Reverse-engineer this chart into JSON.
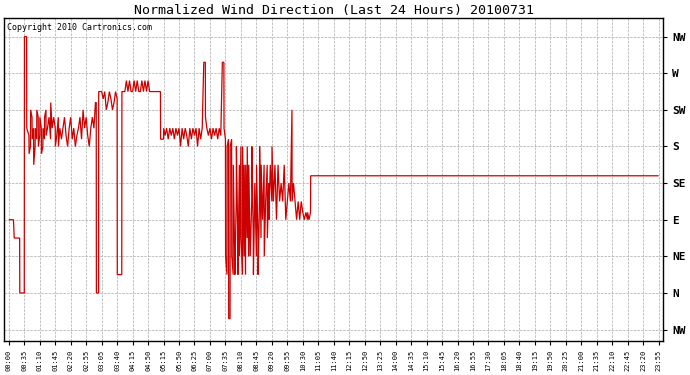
{
  "title": "Normalized Wind Direction (Last 24 Hours) 20100731",
  "copyright": "Copyright 2010 Cartronics.com",
  "line_color": "#cc0000",
  "ytick_labels": [
    "NW",
    "W",
    "SW",
    "S",
    "SE",
    "E",
    "NE",
    "N",
    "NW"
  ],
  "ytick_values": [
    8,
    7,
    6,
    5,
    4,
    3,
    2,
    1,
    0
  ],
  "ylim": [
    -0.3,
    8.5
  ],
  "xtick_labels": [
    "00:00",
    "00:35",
    "01:10",
    "01:45",
    "02:20",
    "02:55",
    "03:05",
    "03:40",
    "04:15",
    "04:50",
    "05:15",
    "05:50",
    "06:25",
    "07:00",
    "07:35",
    "08:10",
    "08:45",
    "09:20",
    "09:55",
    "10:30",
    "11:05",
    "11:40",
    "12:15",
    "12:50",
    "13:25",
    "14:00",
    "14:35",
    "15:10",
    "15:45",
    "16:20",
    "16:55",
    "17:30",
    "18:05",
    "18:40",
    "19:15",
    "19:50",
    "20:25",
    "21:00",
    "21:35",
    "22:10",
    "22:45",
    "23:20",
    "23:55"
  ],
  "figsize": [
    6.9,
    3.75
  ],
  "dpi": 100,
  "wind_data": [
    [
      0.0,
      3.0
    ],
    [
      0.3,
      3.0
    ],
    [
      0.35,
      2.5
    ],
    [
      0.7,
      2.5
    ],
    [
      0.71,
      1.0
    ],
    [
      1.0,
      1.0
    ],
    [
      1.01,
      8.0
    ],
    [
      1.15,
      8.0
    ],
    [
      1.16,
      5.5
    ],
    [
      1.3,
      5.3
    ],
    [
      1.31,
      4.8
    ],
    [
      1.4,
      5.0
    ],
    [
      1.41,
      6.0
    ],
    [
      1.5,
      5.8
    ],
    [
      1.51,
      5.2
    ],
    [
      1.6,
      5.5
    ],
    [
      1.61,
      4.5
    ],
    [
      1.7,
      5.0
    ],
    [
      1.71,
      5.5
    ],
    [
      1.8,
      5.2
    ],
    [
      1.81,
      6.0
    ],
    [
      1.9,
      5.8
    ],
    [
      1.91,
      5.0
    ],
    [
      2.0,
      5.3
    ],
    [
      2.01,
      5.8
    ],
    [
      2.1,
      5.5
    ],
    [
      2.11,
      4.8
    ],
    [
      2.2,
      5.0
    ],
    [
      2.21,
      5.5
    ],
    [
      2.3,
      5.2
    ],
    [
      2.31,
      5.8
    ],
    [
      2.4,
      6.0
    ],
    [
      2.41,
      5.3
    ],
    [
      2.5,
      5.5
    ],
    [
      2.6,
      5.8
    ],
    [
      2.7,
      5.2
    ],
    [
      2.71,
      6.2
    ],
    [
      2.8,
      5.5
    ],
    [
      2.9,
      5.8
    ],
    [
      3.0,
      5.5
    ],
    [
      3.01,
      5.0
    ],
    [
      3.1,
      5.3
    ],
    [
      3.2,
      5.8
    ],
    [
      3.21,
      5.0
    ],
    [
      3.3,
      5.5
    ],
    [
      3.4,
      5.2
    ],
    [
      3.5,
      5.5
    ],
    [
      3.6,
      5.8
    ],
    [
      3.7,
      5.3
    ],
    [
      3.8,
      5.0
    ],
    [
      3.9,
      5.5
    ],
    [
      4.0,
      5.8
    ],
    [
      4.1,
      5.2
    ],
    [
      4.2,
      5.5
    ],
    [
      4.3,
      5.0
    ],
    [
      4.4,
      5.3
    ],
    [
      4.5,
      5.5
    ],
    [
      4.6,
      5.8
    ],
    [
      4.7,
      5.2
    ],
    [
      4.8,
      6.0
    ],
    [
      4.9,
      5.5
    ],
    [
      5.0,
      5.8
    ],
    [
      5.1,
      5.3
    ],
    [
      5.2,
      5.0
    ],
    [
      5.3,
      5.5
    ],
    [
      5.4,
      5.8
    ],
    [
      5.5,
      5.5
    ],
    [
      5.6,
      6.2
    ],
    [
      5.65,
      6.2
    ],
    [
      5.66,
      1.0
    ],
    [
      5.8,
      1.0
    ],
    [
      5.81,
      6.5
    ],
    [
      6.0,
      6.5
    ],
    [
      6.1,
      6.3
    ],
    [
      6.2,
      6.5
    ],
    [
      6.3,
      6.0
    ],
    [
      6.4,
      6.2
    ],
    [
      6.5,
      6.5
    ],
    [
      6.6,
      6.3
    ],
    [
      6.7,
      6.0
    ],
    [
      6.8,
      6.2
    ],
    [
      6.9,
      6.5
    ],
    [
      7.0,
      6.3
    ],
    [
      7.01,
      1.5
    ],
    [
      7.3,
      1.5
    ],
    [
      7.31,
      6.5
    ],
    [
      7.5,
      6.5
    ],
    [
      7.6,
      6.8
    ],
    [
      7.7,
      6.5
    ],
    [
      7.8,
      6.8
    ],
    [
      7.9,
      6.5
    ],
    [
      8.0,
      6.5
    ],
    [
      8.1,
      6.8
    ],
    [
      8.2,
      6.5
    ],
    [
      8.3,
      6.8
    ],
    [
      8.4,
      6.5
    ],
    [
      8.5,
      6.5
    ],
    [
      8.6,
      6.8
    ],
    [
      8.7,
      6.5
    ],
    [
      8.8,
      6.8
    ],
    [
      8.9,
      6.5
    ],
    [
      9.0,
      6.8
    ],
    [
      9.1,
      6.5
    ],
    [
      9.2,
      6.5
    ],
    [
      9.8,
      6.5
    ],
    [
      9.81,
      5.2
    ],
    [
      10.0,
      5.2
    ],
    [
      10.01,
      5.5
    ],
    [
      10.1,
      5.3
    ],
    [
      10.2,
      5.5
    ],
    [
      10.3,
      5.2
    ],
    [
      10.4,
      5.5
    ],
    [
      10.5,
      5.3
    ],
    [
      10.6,
      5.5
    ],
    [
      10.7,
      5.2
    ],
    [
      10.8,
      5.5
    ],
    [
      10.9,
      5.3
    ],
    [
      11.0,
      5.5
    ],
    [
      11.1,
      5.0
    ],
    [
      11.2,
      5.5
    ],
    [
      11.3,
      5.2
    ],
    [
      11.4,
      5.5
    ],
    [
      11.5,
      5.3
    ],
    [
      11.6,
      5.0
    ],
    [
      11.7,
      5.5
    ],
    [
      11.8,
      5.2
    ],
    [
      11.9,
      5.5
    ],
    [
      12.0,
      5.3
    ],
    [
      12.1,
      5.5
    ],
    [
      12.2,
      5.0
    ],
    [
      12.3,
      5.5
    ],
    [
      12.4,
      5.2
    ],
    [
      12.5,
      5.5
    ],
    [
      12.6,
      7.3
    ],
    [
      12.7,
      7.3
    ],
    [
      12.71,
      5.8
    ],
    [
      12.8,
      5.5
    ],
    [
      12.9,
      5.3
    ],
    [
      13.0,
      5.5
    ],
    [
      13.1,
      5.2
    ],
    [
      13.2,
      5.5
    ],
    [
      13.3,
      5.3
    ],
    [
      13.4,
      5.5
    ],
    [
      13.5,
      5.2
    ],
    [
      13.6,
      5.5
    ],
    [
      13.7,
      5.3
    ],
    [
      13.8,
      7.3
    ],
    [
      13.9,
      7.3
    ],
    [
      13.91,
      5.5
    ],
    [
      14.0,
      5.2
    ],
    [
      14.01,
      2.0
    ],
    [
      14.1,
      1.5
    ],
    [
      14.11,
      5.0
    ],
    [
      14.2,
      5.2
    ],
    [
      14.21,
      0.3
    ],
    [
      14.3,
      0.3
    ],
    [
      14.31,
      5.0
    ],
    [
      14.4,
      5.2
    ],
    [
      14.41,
      2.0
    ],
    [
      14.5,
      1.5
    ],
    [
      14.51,
      4.5
    ],
    [
      14.6,
      2.0
    ],
    [
      14.61,
      1.5
    ],
    [
      14.7,
      3.5
    ],
    [
      14.71,
      5.0
    ],
    [
      14.8,
      2.5
    ],
    [
      14.81,
      1.5
    ],
    [
      14.9,
      4.5
    ],
    [
      14.91,
      2.0
    ],
    [
      15.0,
      5.0
    ],
    [
      15.01,
      2.5
    ],
    [
      15.1,
      1.5
    ],
    [
      15.11,
      5.0
    ],
    [
      15.2,
      2.0
    ],
    [
      15.21,
      4.5
    ],
    [
      15.3,
      1.5
    ],
    [
      15.31,
      4.5
    ],
    [
      15.4,
      2.5
    ],
    [
      15.41,
      5.0
    ],
    [
      15.5,
      2.0
    ],
    [
      15.51,
      4.5
    ],
    [
      15.6,
      2.0
    ],
    [
      15.7,
      3.5
    ],
    [
      15.71,
      5.0
    ],
    [
      15.8,
      2.5
    ],
    [
      15.81,
      1.5
    ],
    [
      15.9,
      4.0
    ],
    [
      16.0,
      2.0
    ],
    [
      16.01,
      4.5
    ],
    [
      16.1,
      2.5
    ],
    [
      16.11,
      1.5
    ],
    [
      16.2,
      3.5
    ],
    [
      16.21,
      5.0
    ],
    [
      16.3,
      2.5
    ],
    [
      16.31,
      4.5
    ],
    [
      16.4,
      3.0
    ],
    [
      16.5,
      4.5
    ],
    [
      16.51,
      2.0
    ],
    [
      16.6,
      3.5
    ],
    [
      16.7,
      4.5
    ],
    [
      16.71,
      2.5
    ],
    [
      16.8,
      4.0
    ],
    [
      16.81,
      3.0
    ],
    [
      16.9,
      4.5
    ],
    [
      17.0,
      3.5
    ],
    [
      17.01,
      5.0
    ],
    [
      17.1,
      3.5
    ],
    [
      17.2,
      4.5
    ],
    [
      17.3,
      3.0
    ],
    [
      17.4,
      4.5
    ],
    [
      17.5,
      3.5
    ],
    [
      17.6,
      4.0
    ],
    [
      17.7,
      3.5
    ],
    [
      17.8,
      4.5
    ],
    [
      17.9,
      3.0
    ],
    [
      18.0,
      3.5
    ],
    [
      18.1,
      4.0
    ],
    [
      18.2,
      3.5
    ],
    [
      18.3,
      6.0
    ],
    [
      18.31,
      3.5
    ],
    [
      18.4,
      4.0
    ],
    [
      18.5,
      3.5
    ],
    [
      18.6,
      3.0
    ],
    [
      18.7,
      3.5
    ],
    [
      18.8,
      3.0
    ],
    [
      18.9,
      3.5
    ],
    [
      19.0,
      3.2
    ],
    [
      19.1,
      3.0
    ],
    [
      19.2,
      3.2
    ],
    [
      19.3,
      3.0
    ],
    [
      19.31,
      3.2
    ],
    [
      19.4,
      3.0
    ],
    [
      19.5,
      3.2
    ],
    [
      19.51,
      4.2
    ],
    [
      42.0,
      4.2
    ]
  ]
}
